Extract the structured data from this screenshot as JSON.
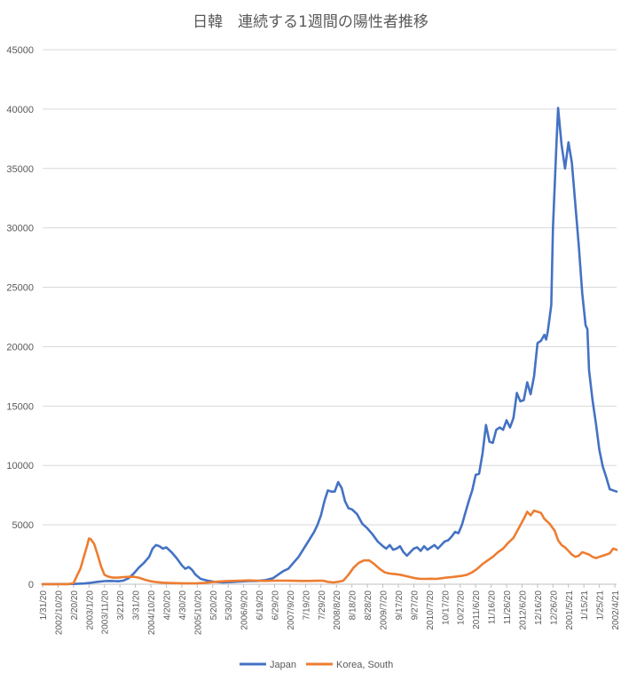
{
  "chart_data": {
    "type": "line",
    "title": "日韓　連続する1週間の陽性者推移",
    "xlabel": "",
    "ylabel": "",
    "ylim": [
      0,
      45000
    ],
    "yticks": [
      "0",
      "5000",
      "10000",
      "15000",
      "20000",
      "25000",
      "30000",
      "35000",
      "40000",
      "45000"
    ],
    "grid": "horizontal",
    "legend_position": "bottom",
    "x_tick_labels": [
      "1/31/20",
      "2002/10/20",
      "2/20/20",
      "2003/1/20",
      "2003/11/20",
      "3/21/20",
      "3/31/20",
      "2004/10/20",
      "4/20/20",
      "4/30/20",
      "2005/10/20",
      "5/20/20",
      "5/30/20",
      "2006/9/20",
      "6/19/20",
      "6/29/20",
      "2007/9/20",
      "7/19/20",
      "7/29/20",
      "2008/8/20",
      "8/18/20",
      "8/28/20",
      "2009/7/20",
      "9/17/20",
      "9/27/20",
      "2010/7/20",
      "10/17/20",
      "10/27/20",
      "2011/6/20",
      "11/16/20",
      "11/26/20",
      "2012/6/20",
      "12/16/20",
      "12/26/20",
      "2001/5/21",
      "1/15/21",
      "1/25/21",
      "2002/4/21",
      "2/14/21",
      "2/24/21"
    ],
    "series": [
      {
        "name": "Japan",
        "color": "#4472C4",
        "points": [
          [
            0,
            5
          ],
          [
            18,
            20
          ],
          [
            24,
            60
          ],
          [
            28,
            120
          ],
          [
            32,
            200
          ],
          [
            36,
            260
          ],
          [
            40,
            280
          ],
          [
            44,
            250
          ],
          [
            47,
            300
          ],
          [
            50,
            500
          ],
          [
            53,
            900
          ],
          [
            56,
            1400
          ],
          [
            59,
            1800
          ],
          [
            62,
            2300
          ],
          [
            64,
            3000
          ],
          [
            66,
            3300
          ],
          [
            68,
            3200
          ],
          [
            70,
            3000
          ],
          [
            72,
            3100
          ],
          [
            75,
            2700
          ],
          [
            78,
            2200
          ],
          [
            81,
            1600
          ],
          [
            83,
            1300
          ],
          [
            85,
            1450
          ],
          [
            87,
            1200
          ],
          [
            89,
            800
          ],
          [
            92,
            450
          ],
          [
            96,
            300
          ],
          [
            100,
            200
          ],
          [
            105,
            160
          ],
          [
            110,
            180
          ],
          [
            115,
            230
          ],
          [
            120,
            260
          ],
          [
            125,
            280
          ],
          [
            130,
            350
          ],
          [
            134,
            500
          ],
          [
            137,
            800
          ],
          [
            140,
            1100
          ],
          [
            143,
            1300
          ],
          [
            146,
            1800
          ],
          [
            149,
            2300
          ],
          [
            152,
            3000
          ],
          [
            155,
            3700
          ],
          [
            158,
            4400
          ],
          [
            160,
            5000
          ],
          [
            162,
            5800
          ],
          [
            164,
            7000
          ],
          [
            166,
            7900
          ],
          [
            168,
            7800
          ],
          [
            170,
            7800
          ],
          [
            172,
            8600
          ],
          [
            174,
            8100
          ],
          [
            176,
            7000
          ],
          [
            178,
            6400
          ],
          [
            180,
            6300
          ],
          [
            183,
            5900
          ],
          [
            186,
            5100
          ],
          [
            189,
            4700
          ],
          [
            192,
            4200
          ],
          [
            195,
            3600
          ],
          [
            198,
            3200
          ],
          [
            200,
            3000
          ],
          [
            202,
            3300
          ],
          [
            204,
            2900
          ],
          [
            206,
            3000
          ],
          [
            208,
            3200
          ],
          [
            210,
            2700
          ],
          [
            212,
            2400
          ],
          [
            214,
            2700
          ],
          [
            216,
            3000
          ],
          [
            218,
            3100
          ],
          [
            220,
            2800
          ],
          [
            222,
            3200
          ],
          [
            224,
            2900
          ],
          [
            226,
            3100
          ],
          [
            228,
            3300
          ],
          [
            230,
            3000
          ],
          [
            232,
            3300
          ],
          [
            234,
            3600
          ],
          [
            236,
            3700
          ],
          [
            238,
            4000
          ],
          [
            240,
            4400
          ],
          [
            242,
            4300
          ],
          [
            244,
            5000
          ],
          [
            246,
            6000
          ],
          [
            248,
            7000
          ],
          [
            250,
            7900
          ],
          [
            252,
            9200
          ],
          [
            254,
            9300
          ],
          [
            256,
            11000
          ],
          [
            258,
            13400
          ],
          [
            260,
            12000
          ],
          [
            262,
            11900
          ],
          [
            264,
            13000
          ],
          [
            266,
            13200
          ],
          [
            268,
            13000
          ],
          [
            270,
            13800
          ],
          [
            272,
            13200
          ],
          [
            274,
            14000
          ],
          [
            276,
            16100
          ],
          [
            278,
            15400
          ],
          [
            280,
            15500
          ],
          [
            282,
            17000
          ],
          [
            284,
            16000
          ],
          [
            286,
            17500
          ],
          [
            288,
            20300
          ],
          [
            290,
            20500
          ],
          [
            292,
            21000
          ],
          [
            293,
            20600
          ],
          [
            294,
            21300
          ],
          [
            296,
            23500
          ],
          [
            297,
            30000
          ],
          [
            299,
            37000
          ],
          [
            300,
            40100
          ],
          [
            302,
            37000
          ],
          [
            304,
            35000
          ],
          [
            306,
            37200
          ],
          [
            308,
            35500
          ],
          [
            310,
            32000
          ],
          [
            312,
            28500
          ],
          [
            314,
            24500
          ],
          [
            316,
            21800
          ],
          [
            317,
            21500
          ],
          [
            318,
            18000
          ],
          [
            320,
            15500
          ],
          [
            322,
            13500
          ],
          [
            324,
            11300
          ],
          [
            326,
            9900
          ],
          [
            328,
            9000
          ],
          [
            330,
            8000
          ],
          [
            332,
            7900
          ],
          [
            334,
            7800
          ]
        ]
      },
      {
        "name": "Korea, South",
        "color": "#ED7D31",
        "points": [
          [
            0,
            5
          ],
          [
            15,
            10
          ],
          [
            18,
            100
          ],
          [
            20,
            700
          ],
          [
            22,
            1300
          ],
          [
            24,
            2300
          ],
          [
            26,
            3300
          ],
          [
            27,
            3850
          ],
          [
            28,
            3800
          ],
          [
            30,
            3400
          ],
          [
            32,
            2500
          ],
          [
            34,
            1500
          ],
          [
            36,
            800
          ],
          [
            38,
            650
          ],
          [
            41,
            550
          ],
          [
            44,
            550
          ],
          [
            47,
            600
          ],
          [
            50,
            620
          ],
          [
            53,
            630
          ],
          [
            56,
            550
          ],
          [
            59,
            400
          ],
          [
            62,
            280
          ],
          [
            66,
            180
          ],
          [
            70,
            130
          ],
          [
            75,
            100
          ],
          [
            80,
            80
          ],
          [
            85,
            70
          ],
          [
            90,
            80
          ],
          [
            95,
            120
          ],
          [
            100,
            200
          ],
          [
            105,
            250
          ],
          [
            110,
            280
          ],
          [
            115,
            300
          ],
          [
            120,
            320
          ],
          [
            125,
            300
          ],
          [
            130,
            280
          ],
          [
            135,
            300
          ],
          [
            140,
            300
          ],
          [
            145,
            290
          ],
          [
            150,
            280
          ],
          [
            155,
            280
          ],
          [
            160,
            290
          ],
          [
            163,
            300
          ],
          [
            166,
            200
          ],
          [
            169,
            150
          ],
          [
            172,
            200
          ],
          [
            175,
            300
          ],
          [
            178,
            800
          ],
          [
            181,
            1400
          ],
          [
            184,
            1800
          ],
          [
            187,
            2000
          ],
          [
            190,
            2000
          ],
          [
            193,
            1700
          ],
          [
            196,
            1300
          ],
          [
            199,
            1000
          ],
          [
            202,
            900
          ],
          [
            205,
            850
          ],
          [
            208,
            800
          ],
          [
            211,
            700
          ],
          [
            214,
            600
          ],
          [
            217,
            500
          ],
          [
            220,
            450
          ],
          [
            223,
            450
          ],
          [
            226,
            460
          ],
          [
            229,
            450
          ],
          [
            232,
            500
          ],
          [
            235,
            550
          ],
          [
            238,
            600
          ],
          [
            241,
            650
          ],
          [
            244,
            700
          ],
          [
            247,
            800
          ],
          [
            250,
            1000
          ],
          [
            253,
            1300
          ],
          [
            256,
            1700
          ],
          [
            259,
            2000
          ],
          [
            262,
            2300
          ],
          [
            265,
            2700
          ],
          [
            268,
            3000
          ],
          [
            271,
            3500
          ],
          [
            274,
            3900
          ],
          [
            277,
            4700
          ],
          [
            280,
            5500
          ],
          [
            282,
            6100
          ],
          [
            284,
            5800
          ],
          [
            286,
            6200
          ],
          [
            288,
            6100
          ],
          [
            290,
            6000
          ],
          [
            292,
            5500
          ],
          [
            295,
            5100
          ],
          [
            298,
            4500
          ],
          [
            300,
            3700
          ],
          [
            302,
            3300
          ],
          [
            304,
            3100
          ],
          [
            306,
            2800
          ],
          [
            308,
            2500
          ],
          [
            310,
            2300
          ],
          [
            312,
            2400
          ],
          [
            314,
            2700
          ],
          [
            316,
            2600
          ],
          [
            318,
            2500
          ],
          [
            320,
            2300
          ],
          [
            322,
            2200
          ],
          [
            324,
            2300
          ],
          [
            326,
            2400
          ],
          [
            328,
            2500
          ],
          [
            330,
            2600
          ],
          [
            332,
            3000
          ],
          [
            334,
            2900
          ]
        ]
      }
    ]
  }
}
